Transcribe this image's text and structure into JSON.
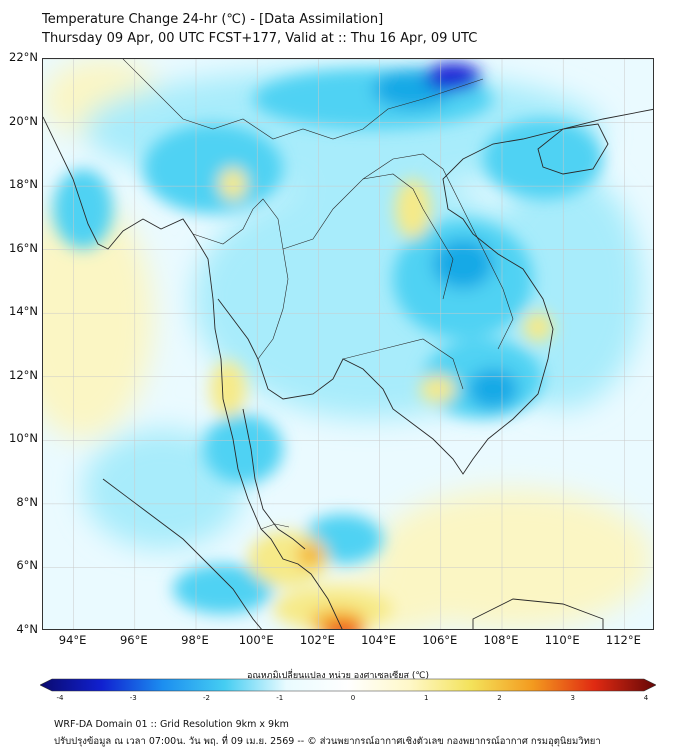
{
  "header": {
    "title_line1": "Temperature Change 24-hr (℃) - [Data Assimilation]",
    "title_line2": "Thursday 09 Apr, 00 UTC FCST+177, Valid at :: Thu 16 Apr, 09 UTC"
  },
  "map": {
    "lon_range": [
      93,
      113
    ],
    "lat_range": [
      4,
      22
    ],
    "lon_ticks": [
      "94°E",
      "96°E",
      "98°E",
      "100°E",
      "102°E",
      "104°E",
      "106°E",
      "108°E",
      "110°E",
      "112°E"
    ],
    "lat_ticks": [
      "4°N",
      "6°N",
      "8°N",
      "10°N",
      "12°N",
      "14°N",
      "16°N",
      "18°N",
      "20°N",
      "22°N"
    ],
    "grid": true,
    "colors": {
      "background": "#eafaff",
      "cool_light": "#a8ecfb",
      "cool_mid": "#4fd2f3",
      "cool_strong": "#12a9e6",
      "coldest": "#1a22d6",
      "warm_light": "#fbf6c4",
      "warm_mid": "#f6ea88",
      "warm_strong": "#f5b52c",
      "hottest": "#ee4b1c",
      "coastline": "#2a2a2a",
      "grid": "#c9c9c9"
    }
  },
  "colorbar": {
    "title": "อุณหภูมิเปลี่ยนแปลง หน่วย องศาเซลเซียส (℃)",
    "min": -4,
    "max": 4,
    "tick_labels": [
      "-4",
      "-3",
      "-2",
      "-1",
      "0",
      "1",
      "2",
      "3",
      "4"
    ],
    "stops": [
      "#0a0a6e",
      "#1020d0",
      "#1c8ff0",
      "#45cdf2",
      "#e9fbff",
      "#ffffff",
      "#fff8c8",
      "#f3e25a",
      "#f39a1f",
      "#e02a12",
      "#650707"
    ]
  },
  "footer": {
    "line1": "WRF-DA Domain 01 :: Grid Resolution 9km x 9km",
    "line2": "ปรับปรุงข้อมูล ณ เวลา 07:00น. วัน พฤ. ที่ 09 เม.ย. 2569 -- © ส่วนพยากรณ์อากาศเชิงตัวเลข กองพยากรณ์อากาศ กรมอุตุนิยมวิทยา"
  }
}
